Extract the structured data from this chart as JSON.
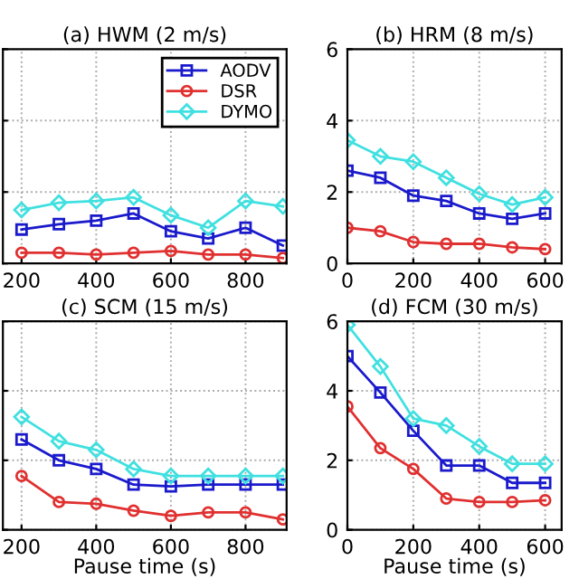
{
  "chart_data": [
    {
      "type": "line",
      "title": "(a) HWM (2 m/s)",
      "x": [
        200,
        300,
        400,
        500,
        600,
        700,
        800,
        900
      ],
      "xlim": [
        150,
        910
      ],
      "xticks": [
        200,
        400,
        600,
        800
      ],
      "ylim": [
        0,
        6
      ],
      "yticks": [
        0,
        2,
        4,
        6
      ],
      "tick_labels": "x",
      "grid": true,
      "legend": "top right",
      "line_style": "solid",
      "series": [
        {
          "name": "AODV",
          "color": "#1a1acc",
          "marker": "square",
          "values": [
            0.95,
            1.1,
            1.2,
            1.4,
            0.9,
            0.7,
            1.0,
            0.5
          ]
        },
        {
          "name": "DSR",
          "color": "#e03030",
          "marker": "circle",
          "values": [
            0.3,
            0.3,
            0.25,
            0.3,
            0.35,
            0.25,
            0.25,
            0.15
          ]
        },
        {
          "name": "DYMO",
          "color": "#40e0e0",
          "marker": "diamond",
          "values": [
            1.5,
            1.7,
            1.75,
            1.85,
            1.35,
            1.0,
            1.75,
            1.6
          ]
        }
      ]
    },
    {
      "type": "line",
      "title": "(b) HRM (8 m/s)",
      "x": [
        0,
        100,
        200,
        300,
        400,
        500,
        600
      ],
      "xlim": [
        0,
        650
      ],
      "xticks": [
        0,
        200,
        400,
        600
      ],
      "ylim": [
        0,
        6
      ],
      "yticks": [
        0,
        2,
        4,
        6
      ],
      "grid": true,
      "line_style": "solid",
      "series": [
        {
          "color": "#1a1acc",
          "marker": "square",
          "values": [
            2.6,
            2.4,
            1.9,
            1.75,
            1.4,
            1.25,
            1.4
          ]
        },
        {
          "color": "#e03030",
          "marker": "circle",
          "values": [
            1.0,
            0.9,
            0.6,
            0.55,
            0.55,
            0.45,
            0.4
          ]
        },
        {
          "color": "#40e0e0",
          "marker": "diamond",
          "values": [
            3.45,
            3.0,
            2.85,
            2.4,
            1.95,
            1.65,
            1.85
          ]
        }
      ]
    },
    {
      "type": "line",
      "title": "(c) SCM (15 m/s)",
      "xlabel": "Pause time (s)",
      "x": [
        200,
        300,
        400,
        500,
        600,
        700,
        800,
        900
      ],
      "xlim": [
        150,
        910
      ],
      "xticks": [
        200,
        400,
        600,
        800
      ],
      "ylim": [
        0,
        6
      ],
      "yticks": [
        0,
        2,
        4,
        6
      ],
      "tick_labels": "x",
      "grid": true,
      "line_style": "solid",
      "series": [
        {
          "color": "#1a1acc",
          "marker": "square",
          "values": [
            2.6,
            2.0,
            1.75,
            1.3,
            1.25,
            1.3,
            1.3,
            1.3
          ]
        },
        {
          "color": "#e03030",
          "marker": "circle",
          "values": [
            1.55,
            0.8,
            0.75,
            0.55,
            0.4,
            0.5,
            0.5,
            0.3
          ]
        },
        {
          "color": "#40e0e0",
          "marker": "diamond",
          "values": [
            3.25,
            2.55,
            2.3,
            1.75,
            1.55,
            1.55,
            1.55,
            1.55
          ]
        }
      ]
    },
    {
      "type": "line",
      "title": "(d) FCM (30 m/s)",
      "xlabel": "Pause time (s)",
      "x": [
        0,
        100,
        200,
        300,
        400,
        500,
        600
      ],
      "xlim": [
        0,
        650
      ],
      "xticks": [
        0,
        200,
        400,
        600
      ],
      "ylim": [
        0,
        6
      ],
      "yticks": [
        0,
        2,
        4,
        6
      ],
      "grid": true,
      "line_style": "solid",
      "series": [
        {
          "color": "#1a1acc",
          "marker": "square",
          "values": [
            5.0,
            3.95,
            2.85,
            1.85,
            1.85,
            1.35,
            1.35
          ]
        },
        {
          "color": "#e03030",
          "marker": "circle",
          "values": [
            3.55,
            2.35,
            1.75,
            0.9,
            0.8,
            0.8,
            0.85
          ]
        },
        {
          "color": "#40e0e0",
          "marker": "diamond",
          "values": [
            5.9,
            4.7,
            3.2,
            3.0,
            2.4,
            1.9,
            1.9
          ]
        }
      ]
    }
  ]
}
